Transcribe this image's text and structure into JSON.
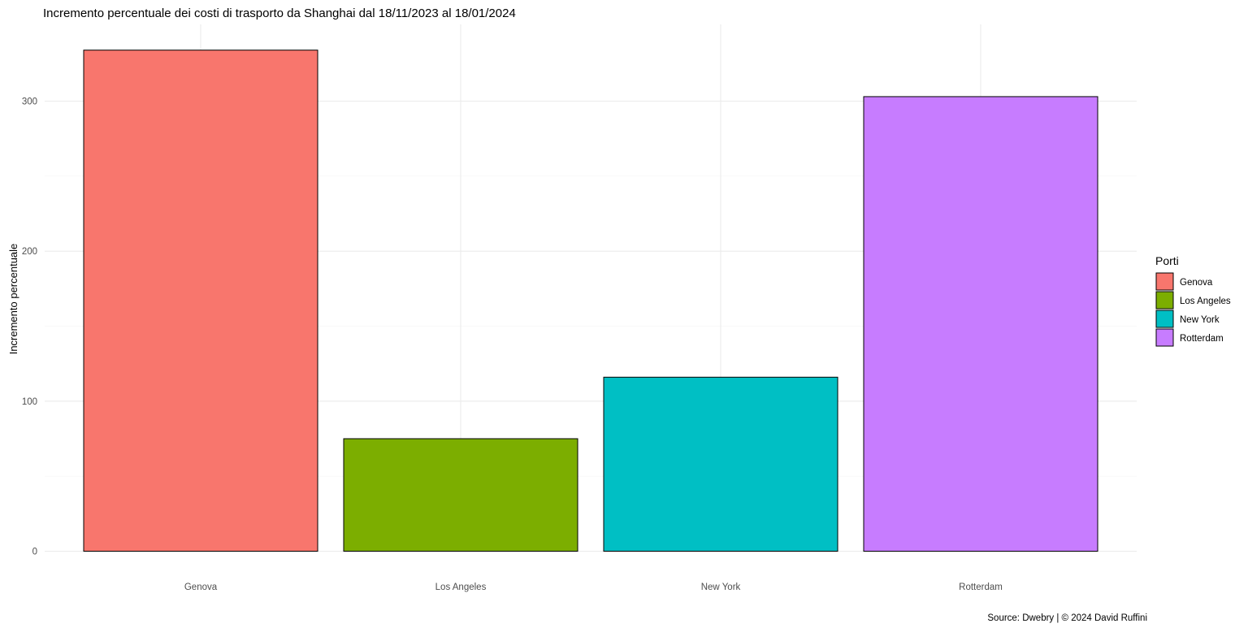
{
  "chart_data": {
    "type": "bar",
    "title": "Incremento percentuale dei costi di trasporto da Shanghai dal 18/11/2023 al 18/01/2024",
    "xlabel": "",
    "ylabel": "Incremento percentuale",
    "caption": "Source: Dwebry | © 2024 David Ruffini",
    "categories": [
      "Genova",
      "Los Angeles",
      "New York",
      "Rotterdam"
    ],
    "values": [
      334,
      75,
      116,
      303
    ],
    "colors": [
      "#F8766D",
      "#7CAE00",
      "#00BFC4",
      "#C77CFF"
    ],
    "yticks": [
      0,
      100,
      200,
      300
    ],
    "ylim": [
      0,
      334
    ],
    "grid": true,
    "legend": {
      "title": "Porti",
      "position": "right",
      "entries": [
        "Genova",
        "Los Angeles",
        "New York",
        "Rotterdam"
      ]
    }
  }
}
